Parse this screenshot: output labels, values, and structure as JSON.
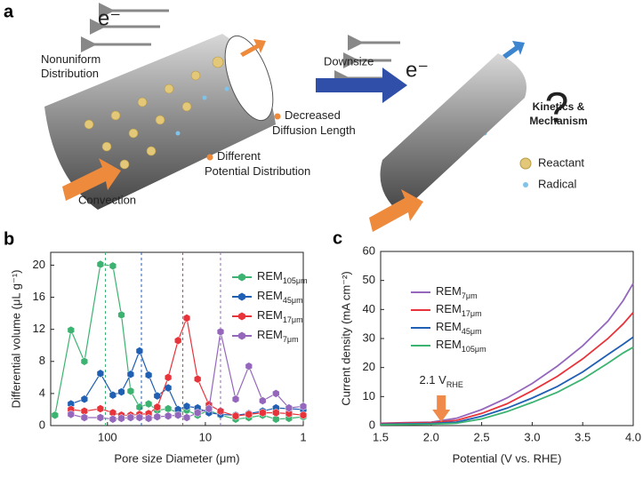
{
  "figure_a": {
    "panel_label": "a",
    "electron_left": "e⁻",
    "nonuniform": [
      "Nonuniform",
      "Distribution"
    ],
    "convection": "Convection",
    "decreased": [
      "Decreased",
      "Diffusion Length"
    ],
    "different": [
      "Different",
      "Potential Distribution"
    ],
    "downsize": "Downsize",
    "electron_right": "e⁻",
    "question": "?",
    "kinetics": [
      "Kinetics &",
      "Mechanism"
    ],
    "reactant": "Reactant",
    "radical": "Radical"
  },
  "chart_data": [
    {
      "panel_label": "b",
      "type": "line",
      "marker": "hexagon",
      "x_label": "Pore size Diameter (μm)",
      "y_label": "Differential volume (μL g⁻¹)",
      "xscale": "log",
      "xlim": [
        380,
        1
      ],
      "xticks": [
        100,
        10,
        1
      ],
      "ylim": [
        0,
        21.6
      ],
      "yticks": [
        0,
        4,
        8,
        12,
        16,
        20
      ],
      "legend_loc": "upper right",
      "x": [
        344,
        236,
        172,
        118,
        88,
        72,
        58,
        47,
        38,
        31,
        24,
        19,
        15.5,
        12,
        9.2,
        7,
        4.9,
        3.6,
        2.6,
        1.9,
        1.4,
        1.0
      ],
      "series": [
        {
          "name": "REM",
          "subscript": "105μm",
          "color": "#3cb371",
          "ref_x": 105,
          "values": [
            1.3,
            11.9,
            8.0,
            20.1,
            19.9,
            13.8,
            4.3,
            2.3,
            2.7,
            1.9,
            2.1,
            1.6,
            1.9,
            1.3,
            1.9,
            1.3,
            0.8,
            1.0,
            1.3,
            0.8,
            0.9,
            1.1
          ]
        },
        {
          "name": "REM",
          "subscript": "45μm",
          "color": "#1f5fb4",
          "ref_x": 45,
          "values": [
            null,
            2.7,
            3.3,
            6.5,
            3.8,
            4.2,
            6.4,
            9.3,
            6.3,
            3.7,
            4.7,
            2.0,
            2.4,
            2.2,
            1.6,
            1.4,
            1.3,
            1.5,
            1.8,
            2.2,
            2.1,
            2.0
          ]
        },
        {
          "name": "REM",
          "subscript": "17μm",
          "color": "#e8333a",
          "ref_x": 17,
          "values": [
            null,
            2.0,
            1.8,
            2.1,
            1.6,
            1.3,
            1.3,
            1.4,
            1.5,
            2.3,
            6.0,
            10.6,
            13.4,
            5.8,
            2.6,
            1.8,
            1.2,
            1.4,
            1.6,
            1.6,
            1.5,
            1.3
          ]
        },
        {
          "name": "REM",
          "subscript": "7μm",
          "color": "#9467bd",
          "ref_x": 7,
          "values": [
            null,
            1.4,
            1.0,
            1.0,
            0.8,
            0.9,
            1.0,
            1.0,
            0.9,
            1.1,
            1.2,
            1.3,
            1.0,
            1.6,
            2.1,
            11.7,
            3.3,
            7.4,
            3.1,
            4.0,
            2.2,
            2.4
          ]
        }
      ]
    },
    {
      "panel_label": "c",
      "type": "line",
      "x_label": "Potential (V vs. RHE)",
      "y_label": "Current density (mA cm⁻²)",
      "xscale": "linear",
      "xlim": [
        1.5,
        4.0
      ],
      "xticks": [
        1.5,
        {
          "value": 2,
          "label": "2.0"
        },
        2.5,
        {
          "value": 3,
          "label": "3.0"
        },
        3.5,
        {
          "value": 4,
          "label": "4.0"
        }
      ],
      "ylim": [
        0,
        60
      ],
      "yticks": [
        0,
        10,
        20,
        30,
        40,
        50,
        60
      ],
      "legend_loc": "upper left",
      "annotation": {
        "text": "2.1 V",
        "subscript": "RHE",
        "x": 2.1,
        "color": "#f08a4b"
      },
      "x": [
        1.5,
        1.75,
        2.0,
        2.25,
        2.5,
        2.75,
        3.0,
        3.25,
        3.5,
        3.75,
        3.9,
        4.0
      ],
      "series": [
        {
          "name": "REM",
          "subscript": "7μm",
          "color": "#9467bd",
          "values": [
            0.8,
            1.0,
            1.2,
            2.5,
            5.5,
            9.5,
            14.5,
            20.5,
            27.5,
            36,
            43,
            49
          ]
        },
        {
          "name": "REM",
          "subscript": "17μm",
          "color": "#e8333a",
          "values": [
            0.7,
            0.9,
            1.0,
            1.8,
            4.2,
            7.5,
            12,
            17,
            23,
            30,
            35,
            39
          ]
        },
        {
          "name": "REM",
          "subscript": "45μm",
          "color": "#1f5fb4",
          "values": [
            0.5,
            0.6,
            0.7,
            1.2,
            3.2,
            6,
            9.5,
            13.5,
            18.5,
            24.5,
            28,
            30.5
          ]
        },
        {
          "name": "REM",
          "subscript": "105μm",
          "color": "#3cb371",
          "values": [
            0.3,
            0.4,
            0.5,
            0.8,
            2.3,
            4.8,
            8,
            11.5,
            16,
            21.5,
            25,
            27
          ]
        }
      ]
    }
  ]
}
